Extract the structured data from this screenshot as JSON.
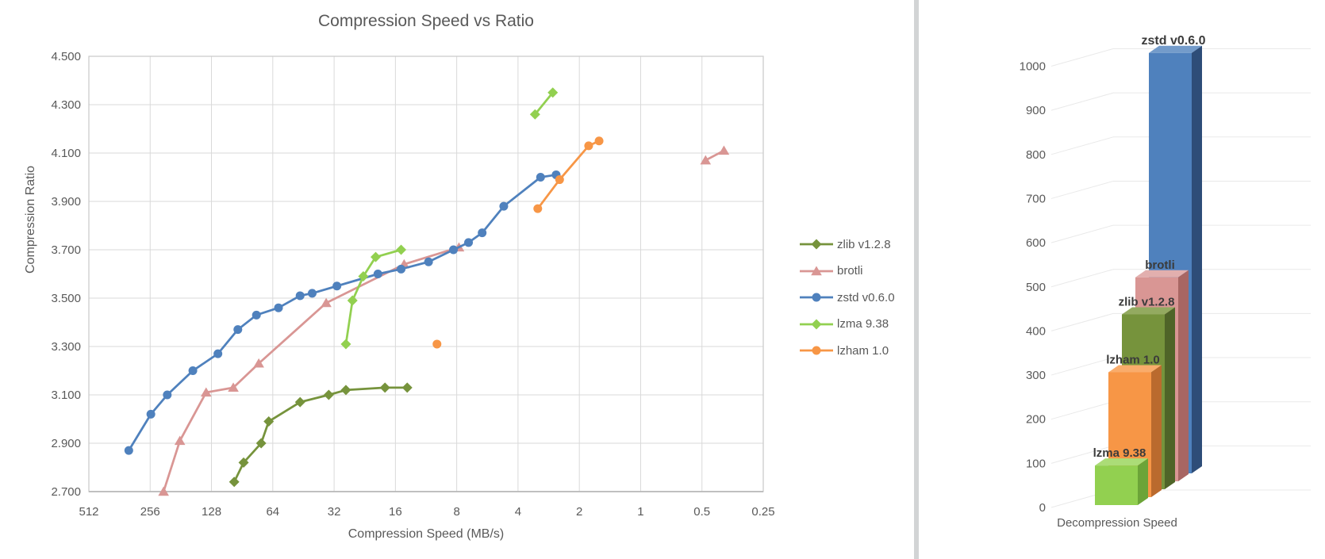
{
  "page": {
    "background": "#FFFFFF",
    "divider_color": "#D2D4D5"
  },
  "scatter": {
    "title": "Compression Speed vs Ratio",
    "text_color": "#595959",
    "grid_color": "#D9D9D9",
    "border_color": "#C9C9C9"
  },
  "bar": {
    "category_label": "Decompression Speed",
    "text_color": "#595959",
    "grid_color": "#E9E9E9"
  },
  "chart_data": [
    {
      "type": "scatter",
      "title": "Compression Speed vs Ratio",
      "xlabel": "Compression Speed (MB/s)",
      "ylabel": "Compression Ratio",
      "x_scale": "log2_reversed",
      "xlim": [
        512,
        0.25
      ],
      "ylim": [
        2.7,
        4.5
      ],
      "x_ticks": [
        "512",
        "256",
        "128",
        "64",
        "32",
        "16",
        "8",
        "4",
        "2",
        "1",
        "0.5",
        "0.25"
      ],
      "y_ticks": [
        "4.500",
        "4.300",
        "4.100",
        "3.900",
        "3.700",
        "3.500",
        "3.300",
        "3.100",
        "2.900",
        "2.700"
      ],
      "grid": true,
      "legend_position": "right",
      "series": [
        {
          "name": "zlib v1.2.8",
          "color": "#76933C",
          "marker": "diamond",
          "segments": [
            [
              [
                99,
                2.74
              ],
              [
                89,
                2.82
              ],
              [
                73,
                2.9
              ],
              [
                67,
                2.99
              ],
              [
                47,
                3.07
              ],
              [
                34,
                3.1
              ],
              [
                28,
                3.12
              ],
              [
                18,
                3.13
              ],
              [
                14,
                3.13
              ]
            ]
          ]
        },
        {
          "name": "brotli",
          "color": "#D99694",
          "marker": "triangle",
          "segments": [
            [
              [
                220,
                2.7
              ],
              [
                183,
                2.91
              ],
              [
                136,
                3.11
              ],
              [
                100,
                3.13
              ],
              [
                75,
                3.23
              ],
              [
                35,
                3.48
              ],
              [
                14.5,
                3.64
              ],
              [
                7.8,
                3.71
              ]
            ],
            [
              [
                0.48,
                4.07
              ],
              [
                0.39,
                4.11
              ]
            ]
          ]
        },
        {
          "name": "zstd v0.6.0",
          "color": "#4F81BD",
          "marker": "circle",
          "segments": [
            [
              [
                326,
                2.87
              ],
              [
                254,
                3.02
              ],
              [
                211,
                3.1
              ],
              [
                158,
                3.2
              ],
              [
                119,
                3.27
              ],
              [
                95,
                3.37
              ],
              [
                77,
                3.43
              ],
              [
                60,
                3.46
              ],
              [
                47,
                3.51
              ],
              [
                41,
                3.52
              ],
              [
                31,
                3.55
              ],
              [
                19.5,
                3.6
              ],
              [
                15,
                3.62
              ],
              [
                11,
                3.65
              ],
              [
                8.3,
                3.7
              ],
              [
                7,
                3.73
              ],
              [
                6,
                3.77
              ],
              [
                4.7,
                3.88
              ],
              [
                3.1,
                4.0
              ],
              [
                2.6,
                4.01
              ]
            ]
          ]
        },
        {
          "name": "lzma 9.38",
          "color": "#92D050",
          "marker": "diamond",
          "segments": [
            [
              [
                28,
                3.31
              ],
              [
                26,
                3.49
              ],
              [
                23,
                3.59
              ],
              [
                20,
                3.67
              ],
              [
                15,
                3.7
              ]
            ],
            [
              [
                3.3,
                4.26
              ],
              [
                2.7,
                4.35
              ]
            ]
          ]
        },
        {
          "name": "lzham 1.0",
          "color": "#F79646",
          "marker": "circle",
          "segments": [
            [
              [
                10,
                3.31
              ]
            ],
            [
              [
                3.2,
                3.87
              ],
              [
                2.5,
                3.99
              ],
              [
                1.8,
                4.13
              ],
              [
                1.6,
                4.15
              ]
            ]
          ]
        }
      ]
    },
    {
      "type": "bar",
      "projection": "3d",
      "categories": [
        "Decompression Speed"
      ],
      "ylim": [
        0,
        1000
      ],
      "y_ticks": [
        "0",
        "100",
        "200",
        "300",
        "400",
        "500",
        "600",
        "700",
        "800",
        "900",
        "1000"
      ],
      "grid": true,
      "series": [
        {
          "name": "lzma 9.38",
          "value": 95,
          "color": "#92D050",
          "color_top": "#ABDC77",
          "color_side": "#6CA438"
        },
        {
          "name": "lzham 1.0",
          "value": 300,
          "color": "#F79646",
          "color_top": "#F9AC6B",
          "color_side": "#BA6A2E"
        },
        {
          "name": "zlib v1.2.8",
          "value": 420,
          "color": "#76933C",
          "color_top": "#93AA60",
          "color_side": "#4F6428"
        },
        {
          "name": "brotli",
          "value": 490,
          "color": "#D99694",
          "color_top": "#E2AFAE",
          "color_side": "#A86663"
        },
        {
          "name": "zstd v0.6.0",
          "value": 1010,
          "color": "#4F81BD",
          "color_top": "#739BCA",
          "color_side": "#2E4D78"
        }
      ]
    }
  ]
}
